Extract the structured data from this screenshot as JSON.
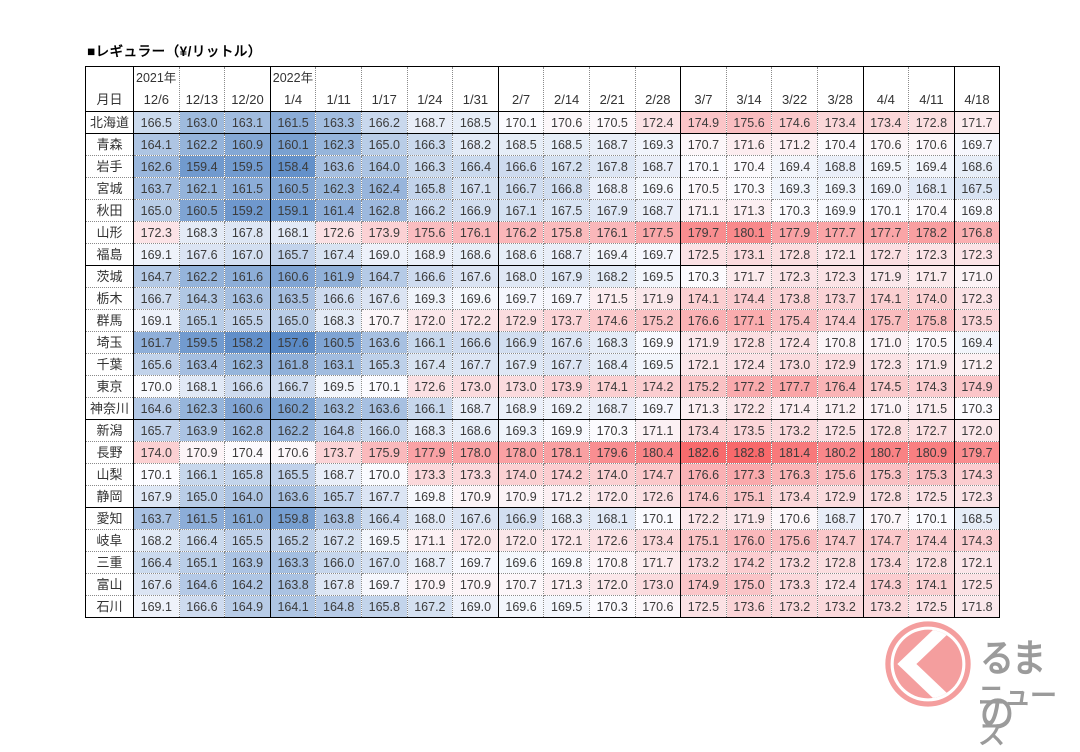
{
  "title": "■レギュラー（¥/リットル）",
  "chart_data": {
    "type": "heatmap",
    "title": "■レギュラー（¥/リットル）",
    "row_header_label": "月日",
    "year_labels": {
      "0": "2021年",
      "3": "2022年"
    },
    "columns": [
      "12/6",
      "12/13",
      "12/20",
      "1/4",
      "1/11",
      "1/17",
      "1/24",
      "1/31",
      "2/7",
      "2/14",
      "2/21",
      "2/28",
      "3/7",
      "3/14",
      "3/22",
      "3/28",
      "4/4",
      "4/11",
      "4/18"
    ],
    "rows": [
      "北海道",
      "青森",
      "岩手",
      "宮城",
      "秋田",
      "山形",
      "福島",
      "茨城",
      "栃木",
      "群馬",
      "埼玉",
      "千葉",
      "東京",
      "神奈川",
      "新潟",
      "長野",
      "山梨",
      "静岡",
      "愛知",
      "岐阜",
      "三重",
      "富山",
      "石川"
    ],
    "values": [
      [
        166.5,
        163.0,
        163.1,
        161.5,
        163.3,
        166.2,
        168.7,
        168.5,
        170.1,
        170.6,
        170.5,
        172.4,
        174.9,
        175.6,
        174.6,
        173.4,
        173.4,
        172.8,
        171.7
      ],
      [
        164.1,
        162.2,
        160.9,
        160.1,
        162.3,
        165.0,
        166.3,
        168.2,
        168.5,
        168.5,
        168.7,
        169.3,
        170.7,
        171.6,
        171.2,
        170.4,
        170.6,
        170.6,
        169.7
      ],
      [
        162.6,
        159.4,
        159.5,
        158.4,
        163.6,
        164.0,
        166.3,
        166.4,
        166.6,
        167.2,
        167.8,
        168.7,
        170.1,
        170.4,
        169.4,
        168.8,
        169.5,
        169.4,
        168.6
      ],
      [
        163.7,
        162.1,
        161.5,
        160.5,
        162.3,
        162.4,
        165.8,
        167.1,
        166.7,
        166.8,
        168.8,
        169.6,
        170.5,
        170.3,
        169.3,
        169.3,
        169.0,
        168.1,
        167.5
      ],
      [
        165.0,
        160.5,
        159.2,
        159.1,
        161.4,
        162.8,
        166.2,
        166.9,
        167.1,
        167.5,
        167.9,
        168.7,
        171.1,
        171.3,
        170.3,
        169.9,
        170.1,
        170.4,
        169.8
      ],
      [
        172.3,
        168.3,
        167.8,
        168.1,
        172.6,
        173.9,
        175.6,
        176.1,
        176.2,
        175.8,
        176.1,
        177.5,
        179.7,
        180.1,
        177.9,
        177.7,
        177.7,
        178.2,
        176.8
      ],
      [
        169.1,
        167.6,
        167.0,
        165.7,
        167.4,
        169.0,
        168.9,
        168.6,
        168.6,
        168.7,
        169.4,
        169.7,
        172.5,
        173.1,
        172.8,
        172.1,
        172.7,
        172.3,
        172.3
      ],
      [
        164.7,
        162.2,
        161.6,
        160.6,
        161.9,
        164.7,
        166.6,
        167.6,
        168.0,
        167.9,
        168.2,
        169.5,
        170.3,
        171.7,
        172.3,
        172.3,
        171.9,
        171.7,
        171.0
      ],
      [
        166.7,
        164.3,
        163.6,
        163.5,
        166.6,
        167.6,
        169.3,
        169.6,
        169.7,
        169.7,
        171.5,
        171.9,
        174.1,
        174.4,
        173.8,
        173.7,
        174.1,
        174.0,
        172.3
      ],
      [
        169.1,
        165.1,
        165.5,
        165.0,
        168.3,
        170.7,
        172.0,
        172.2,
        172.9,
        173.7,
        174.6,
        175.2,
        176.6,
        177.1,
        175.4,
        174.4,
        175.7,
        175.8,
        173.5
      ],
      [
        161.7,
        159.5,
        158.2,
        157.6,
        160.5,
        163.6,
        166.1,
        166.6,
        166.9,
        167.6,
        168.3,
        169.9,
        171.9,
        172.8,
        172.4,
        170.8,
        171.0,
        170.5,
        169.4
      ],
      [
        165.6,
        163.4,
        162.3,
        161.8,
        163.1,
        165.3,
        167.4,
        167.7,
        167.9,
        167.7,
        168.4,
        169.5,
        172.1,
        172.4,
        173.0,
        172.9,
        172.3,
        171.9,
        171.2
      ],
      [
        170.0,
        168.1,
        166.6,
        166.7,
        169.5,
        170.1,
        172.6,
        173.0,
        173.0,
        173.9,
        174.1,
        174.2,
        175.2,
        177.2,
        177.7,
        176.4,
        174.5,
        174.3,
        174.9
      ],
      [
        164.6,
        162.3,
        160.6,
        160.2,
        163.2,
        163.6,
        166.1,
        168.7,
        168.9,
        169.2,
        168.7,
        169.7,
        171.3,
        172.2,
        171.4,
        171.2,
        171.0,
        171.5,
        170.3
      ],
      [
        165.7,
        163.9,
        162.8,
        162.2,
        164.8,
        166.0,
        168.3,
        168.6,
        169.3,
        169.9,
        170.3,
        171.1,
        173.4,
        173.5,
        173.2,
        172.5,
        172.8,
        172.7,
        172.0
      ],
      [
        174.0,
        170.9,
        170.4,
        170.6,
        173.7,
        175.9,
        177.9,
        178.0,
        178.0,
        178.1,
        179.6,
        180.4,
        182.6,
        182.8,
        181.4,
        180.2,
        180.7,
        180.9,
        179.7
      ],
      [
        170.1,
        166.1,
        165.8,
        165.5,
        168.7,
        170.0,
        173.3,
        173.3,
        174.0,
        174.2,
        174.0,
        174.7,
        176.6,
        177.3,
        176.3,
        175.6,
        175.3,
        175.3,
        174.3
      ],
      [
        167.9,
        165.0,
        164.0,
        163.6,
        165.7,
        167.7,
        169.8,
        170.9,
        170.9,
        171.2,
        172.0,
        172.6,
        174.6,
        175.1,
        173.4,
        172.9,
        172.8,
        172.5,
        172.3
      ],
      [
        163.7,
        161.5,
        161.0,
        159.8,
        163.8,
        166.4,
        168.0,
        167.6,
        166.9,
        168.3,
        168.1,
        170.1,
        172.2,
        171.9,
        170.6,
        168.7,
        170.7,
        170.1,
        168.5
      ],
      [
        168.2,
        166.4,
        165.5,
        165.2,
        167.2,
        169.5,
        171.1,
        172.0,
        172.0,
        172.1,
        172.6,
        173.4,
        175.1,
        176.0,
        175.6,
        174.7,
        174.7,
        174.4,
        174.3
      ],
      [
        166.4,
        165.1,
        163.9,
        163.3,
        166.0,
        167.0,
        168.7,
        169.7,
        169.6,
        169.8,
        170.8,
        171.7,
        173.2,
        174.2,
        173.2,
        172.8,
        173.4,
        172.8,
        172.1
      ],
      [
        167.6,
        164.6,
        164.2,
        163.8,
        167.8,
        169.7,
        170.9,
        170.9,
        170.7,
        171.3,
        172.0,
        173.0,
        174.9,
        175.0,
        173.3,
        172.4,
        174.3,
        174.1,
        172.5
      ],
      [
        169.1,
        166.6,
        164.9,
        164.1,
        164.8,
        165.8,
        167.2,
        169.0,
        169.6,
        169.5,
        170.3,
        170.6,
        172.5,
        173.6,
        173.2,
        173.2,
        173.2,
        172.5,
        171.8
      ]
    ],
    "color_scale": {
      "min": 157.6,
      "mid": 170.2,
      "max": 182.8,
      "min_color": "#5A8AC6",
      "mid_color": "#FCFCFF",
      "max_color": "#F8696B"
    },
    "legend_position": "none",
    "solid_border_after_columns": [
      2,
      7,
      11,
      15,
      17,
      18
    ],
    "solid_border_after_rows": [
      0,
      6,
      13,
      17,
      22
    ]
  },
  "logo": {
    "text_line1": "るまの",
    "text_line2": "ニュース",
    "text_color": "#9b9b9b",
    "accent_color": "#F49E9E"
  }
}
